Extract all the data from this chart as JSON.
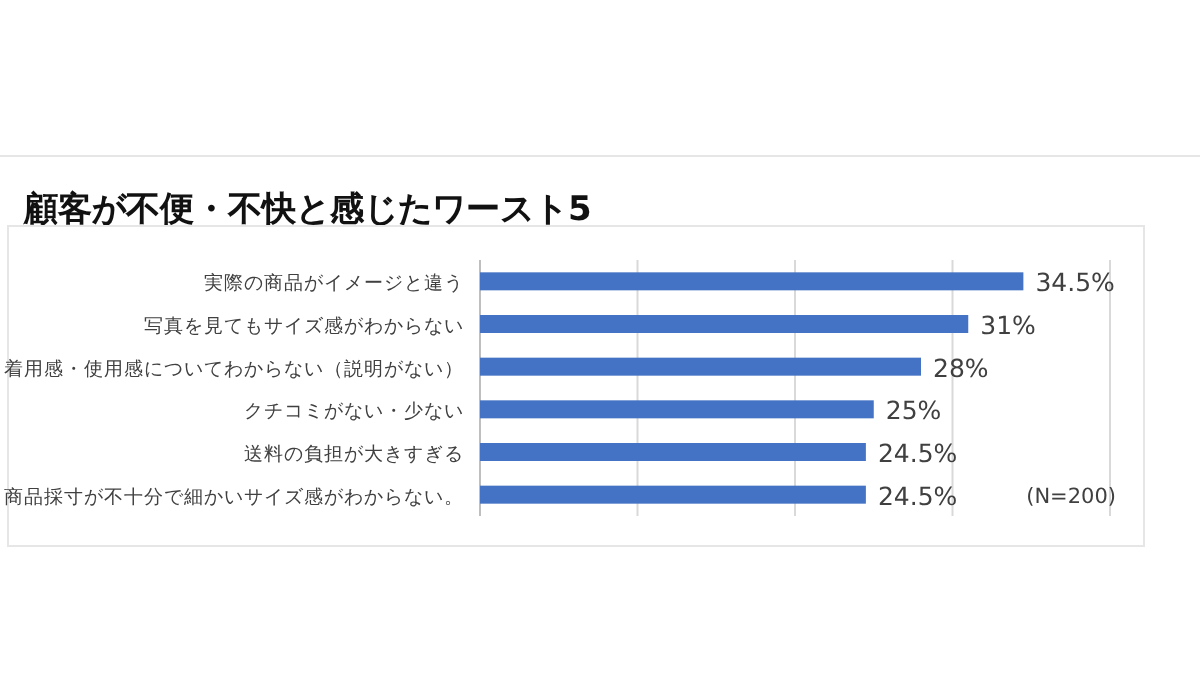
{
  "chart_data": {
    "type": "bar",
    "orientation": "horizontal",
    "title": "顧客が不便・不快と感じたワースト5",
    "categories": [
      "実際の商品がイメージと違う",
      "写真を見てもサイズ感がわからない",
      "着用感・使用感についてわからない（説明がない）",
      "クチコミがない・少ない",
      "送料の負担が大きすぎる",
      "商品採寸が不十分で細かいサイズ感がわからない。"
    ],
    "values": [
      34.5,
      31,
      28,
      25,
      24.5,
      24.5
    ],
    "value_labels": [
      "34.5%",
      "31%",
      "28%",
      "25%",
      "24.5%",
      "24.5%"
    ],
    "color": "#4472c4",
    "xlim": [
      0,
      40
    ],
    "xticks": [
      {
        "value": 0,
        "label": null
      },
      {
        "value": 10,
        "label": null
      },
      {
        "value": 20,
        "label": null
      },
      {
        "value": 30,
        "label": null
      },
      {
        "value": 40,
        "label": null
      }
    ],
    "tick_labels": "y",
    "grid": "x",
    "annotations": [
      "(N=200)"
    ]
  }
}
